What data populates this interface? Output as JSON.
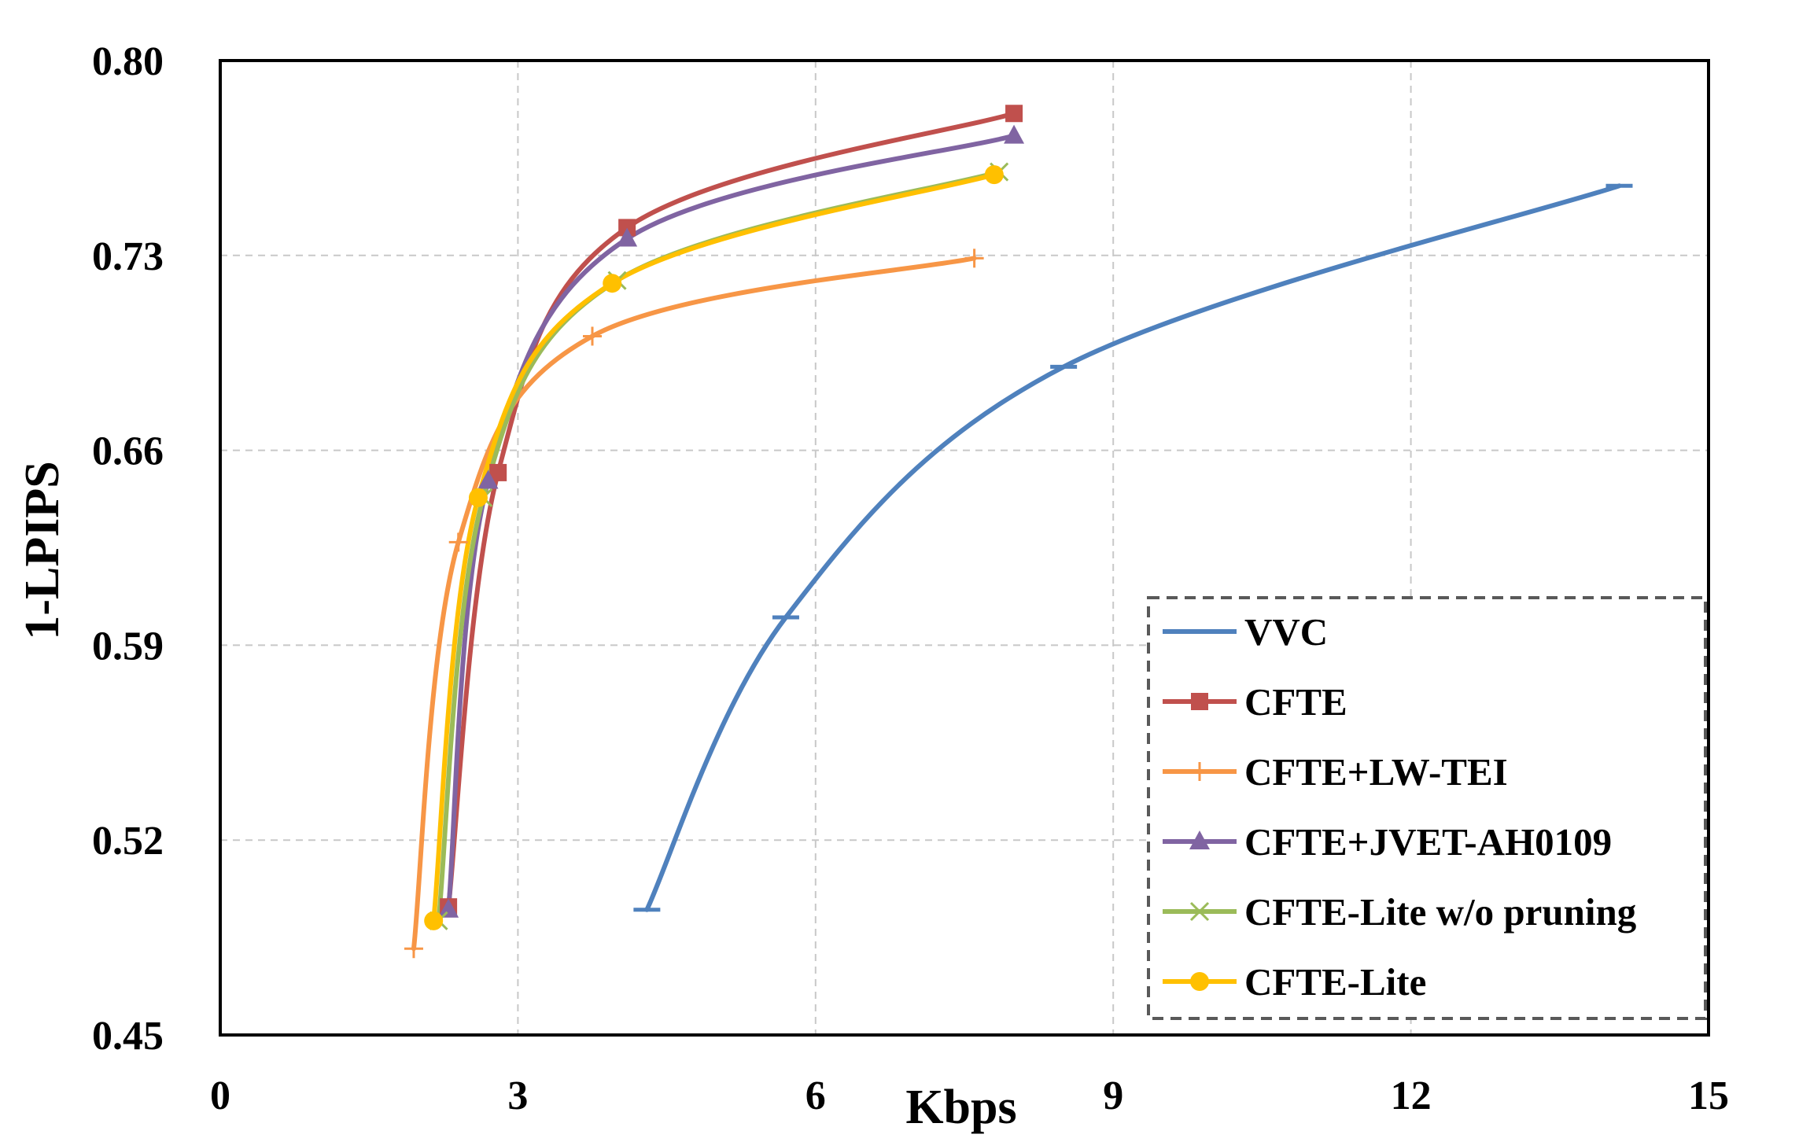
{
  "chart_data": {
    "type": "line",
    "title": "",
    "xlabel": "Kbps",
    "ylabel": "1-LPIPS",
    "xlim": [
      0,
      15
    ],
    "ylim": [
      0.45,
      0.8
    ],
    "xticks": [
      0,
      3,
      6,
      9,
      12,
      15
    ],
    "yticks": [
      0.45,
      0.52,
      0.59,
      0.66,
      0.73,
      0.8
    ],
    "xtick_labels": [
      "0",
      "3",
      "6",
      "9",
      "12",
      "15"
    ],
    "ytick_labels": [
      "0.45",
      "0.52",
      "0.59",
      "0.66",
      "0.73",
      "0.80"
    ],
    "grid": true,
    "legend_position": "bottom-right",
    "series": [
      {
        "name": "VVC",
        "color": "#4f81bd",
        "marker": "dash",
        "x": [
          4.3,
          5.7,
          8.5,
          14.1
        ],
        "y": [
          0.495,
          0.6,
          0.69,
          0.755
        ]
      },
      {
        "name": "CFTE",
        "color": "#c0504d",
        "marker": "square",
        "x": [
          2.3,
          2.8,
          4.1,
          8.0
        ],
        "y": [
          0.496,
          0.652,
          0.74,
          0.781
        ]
      },
      {
        "name": "CFTE+LW-TEI",
        "color": "#f79646",
        "marker": "plus",
        "x": [
          1.95,
          2.4,
          3.75,
          7.6
        ],
        "y": [
          0.481,
          0.627,
          0.701,
          0.729
        ]
      },
      {
        "name": "CFTE+JVET-AH0109",
        "color": "#8064a2",
        "marker": "triangle",
        "x": [
          2.3,
          2.7,
          4.1,
          8.0
        ],
        "y": [
          0.495,
          0.649,
          0.736,
          0.773
        ]
      },
      {
        "name": "CFTE-Lite w/o pruning",
        "color": "#9bbb59",
        "marker": "x",
        "x": [
          2.2,
          2.65,
          4.0,
          7.85
        ],
        "y": [
          0.491,
          0.643,
          0.721,
          0.76
        ]
      },
      {
        "name": "CFTE-Lite",
        "color": "#ffc000",
        "marker": "circle",
        "x": [
          2.15,
          2.6,
          3.95,
          7.8
        ],
        "y": [
          0.491,
          0.643,
          0.72,
          0.759
        ]
      }
    ]
  }
}
